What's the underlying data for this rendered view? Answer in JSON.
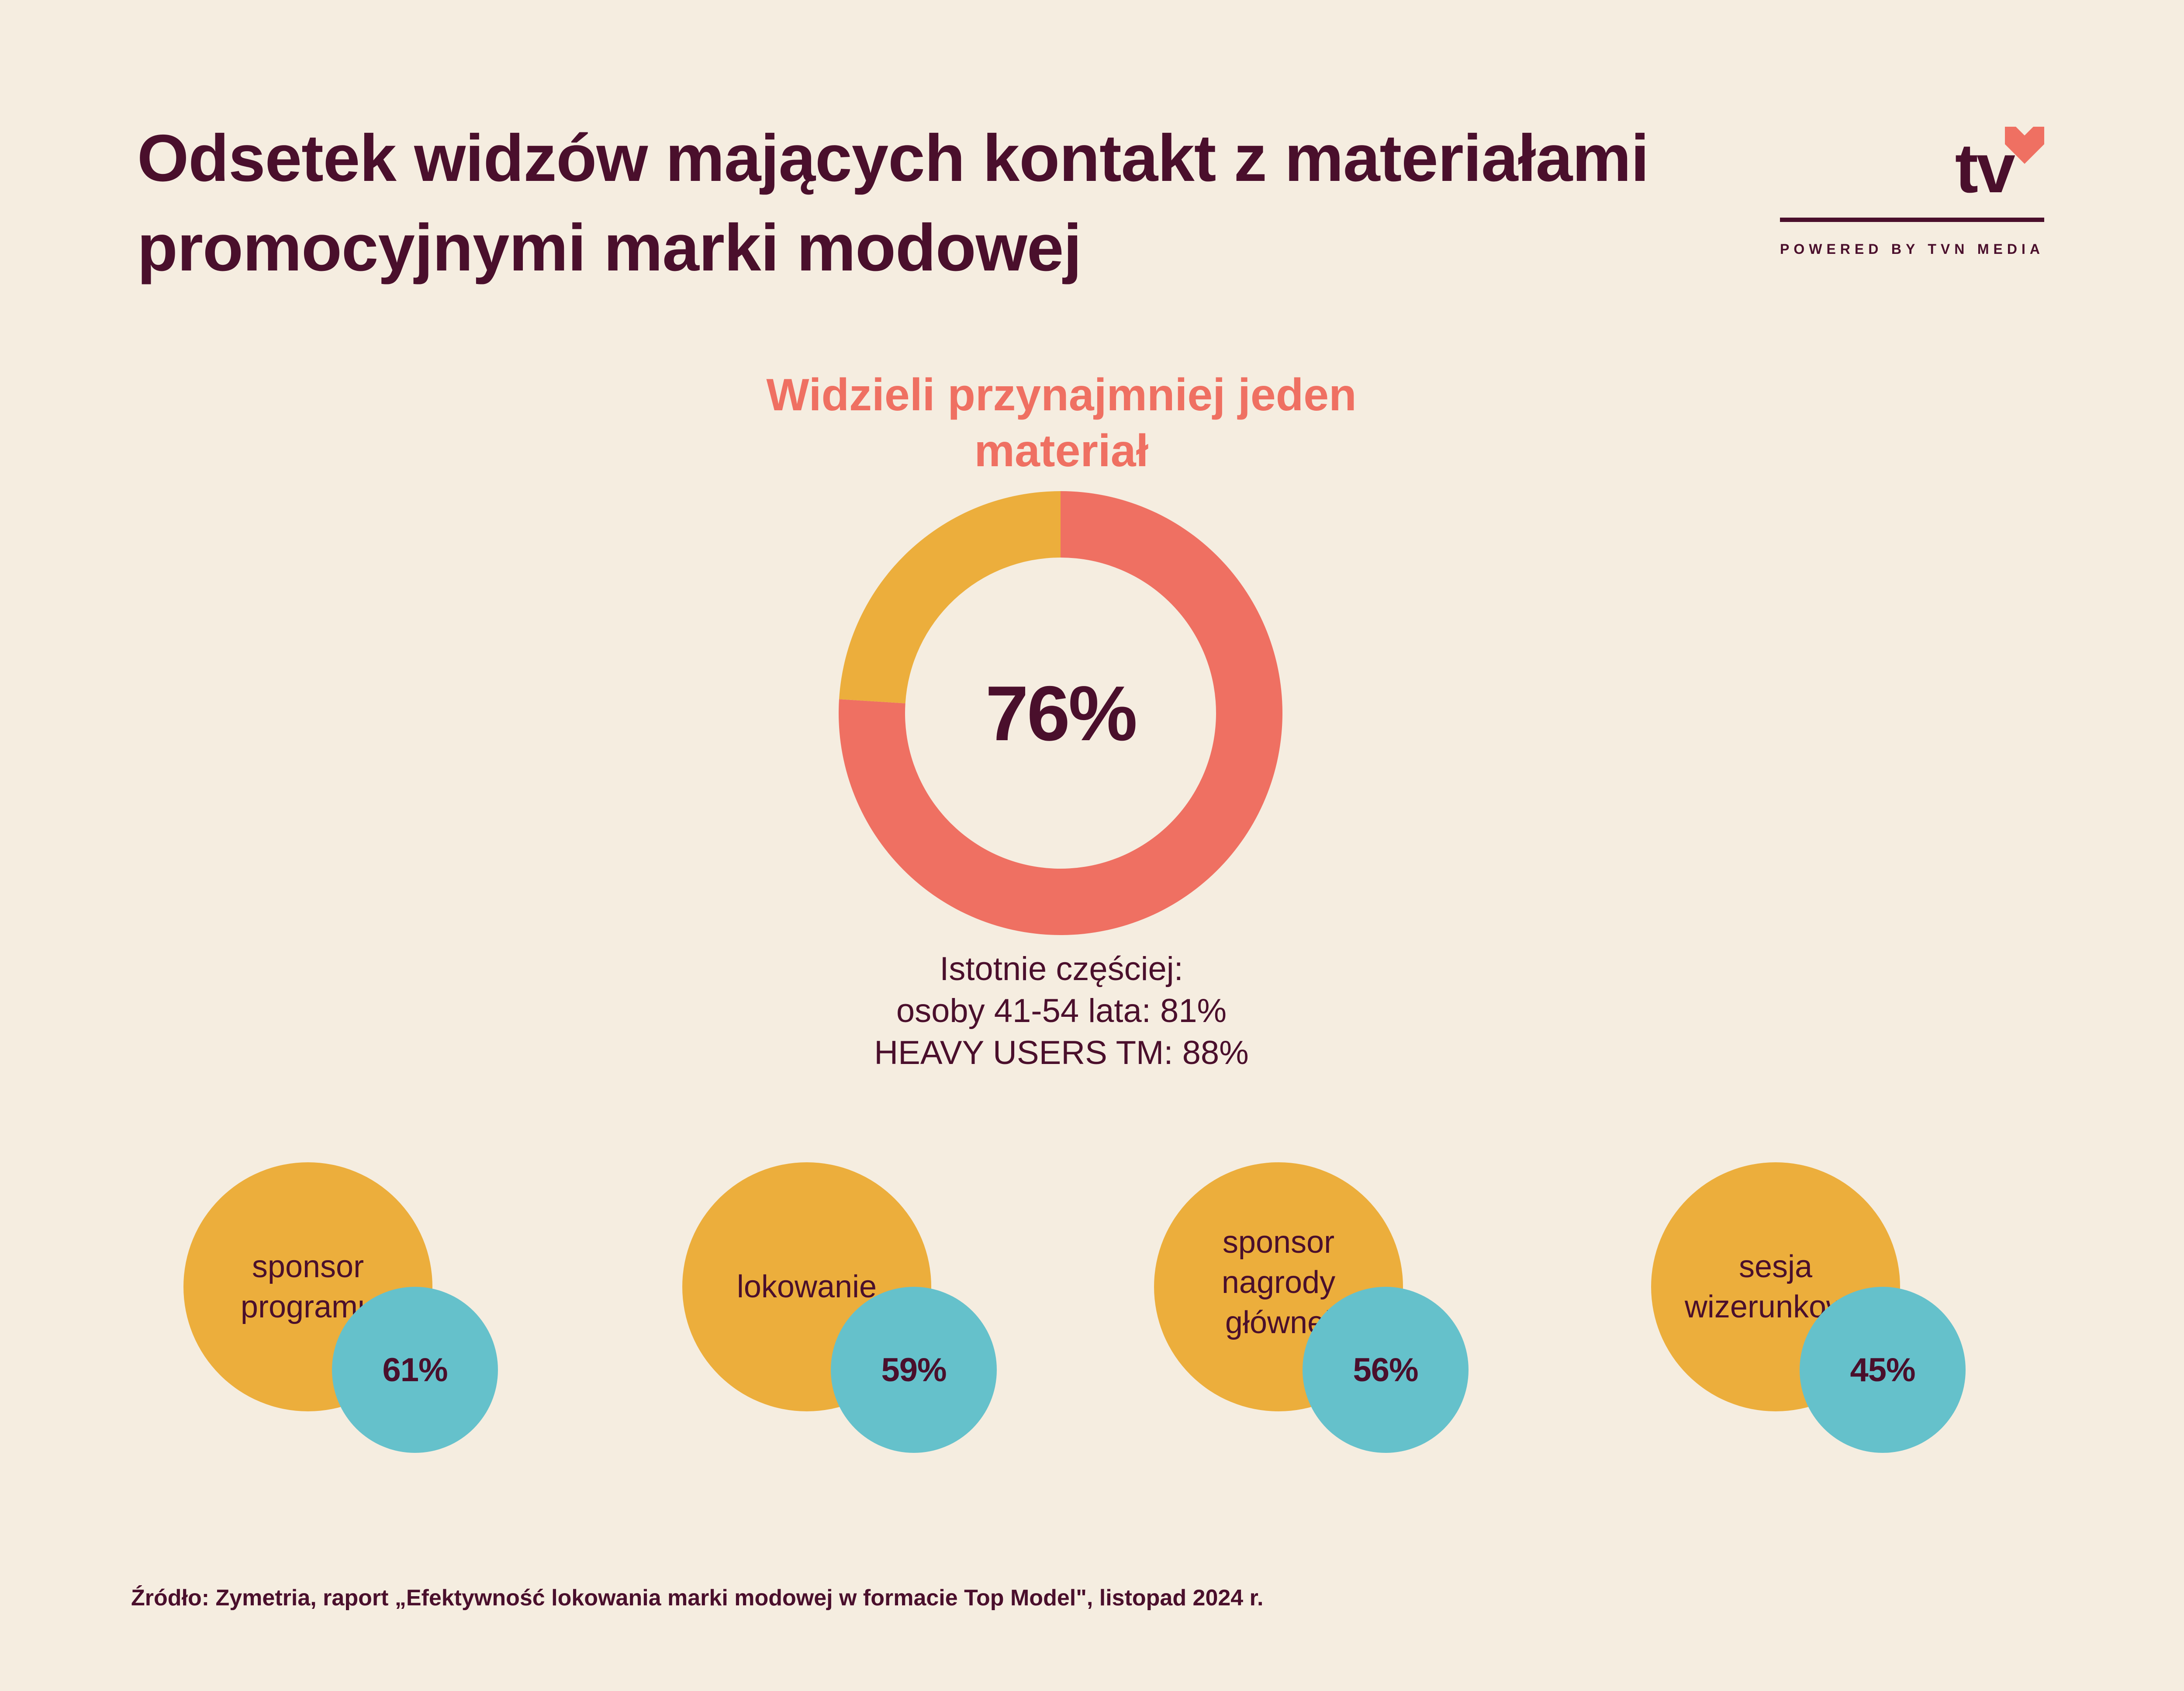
{
  "title": "Odsetek widzów mających kontakt z materiałami promocyjnymi marki modowej",
  "logo": {
    "text": "tv",
    "subtitle": "POWERED BY TVN MEDIA"
  },
  "colors": {
    "background": "#f5ede0",
    "text": "#4a0f2c",
    "coral": "#ef7062",
    "amber": "#ecae3c",
    "teal": "#65c1cb"
  },
  "chart_data": [
    {
      "type": "pie",
      "variant": "donut",
      "title": "Widzieli przynajmniej jeden materiał",
      "center_label": "76%",
      "slices": [
        {
          "label": "Widzieli przynajmniej jeden materiał",
          "value": 76,
          "color": "#ef7062"
        },
        {
          "label": "",
          "value": 24,
          "color": "#ecae3c"
        }
      ],
      "notes": [
        "Istotnie częściej:",
        "osoby 41-54 lata: 81%",
        "HEAVY USERS TM: 88%"
      ]
    },
    {
      "type": "bubble",
      "categories": [
        "sponsor programu",
        "lokowanie",
        "sponsor nagrody głównej",
        "sesja wizerunkowa"
      ],
      "display_labels": [
        "sponsor\nprogramu",
        "lokowanie",
        "sponsor\nnagrody\ngłównej",
        "sesja\nwizerunkowa"
      ],
      "values": [
        61,
        59,
        56,
        45
      ],
      "value_labels": [
        "61%",
        "59%",
        "56%",
        "45%"
      ],
      "unit": "%"
    }
  ],
  "source": "Źródło: Zymetria, raport „Efektywność lokowania marki modowej w formacie Top Model\", listopad 2024 r."
}
